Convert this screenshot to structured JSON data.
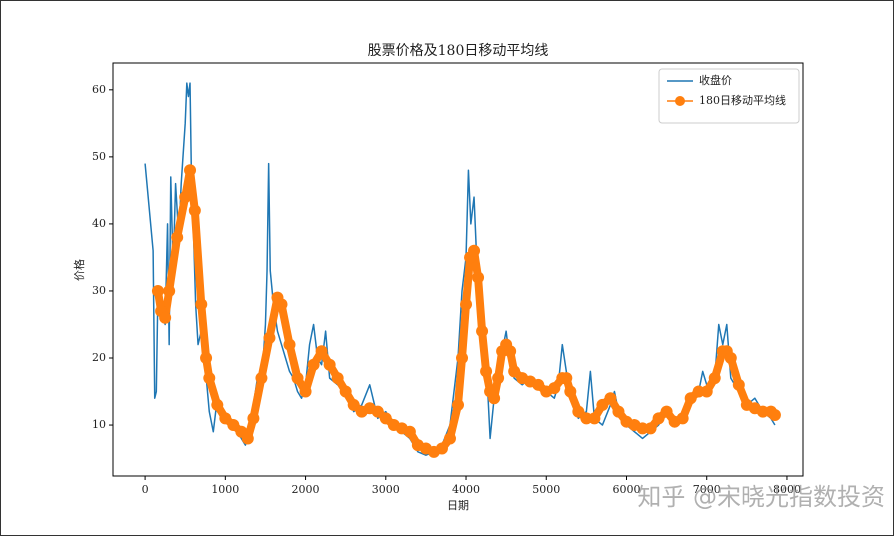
{
  "chart_data": {
    "type": "line",
    "title": "股票价格及180日移动平均线",
    "xlabel": "日期",
    "ylabel": "价格",
    "xlim": [
      -400,
      8200
    ],
    "ylim": [
      2.4,
      64
    ],
    "xticks": [
      0,
      1000,
      2000,
      3000,
      4000,
      5000,
      6000,
      7000,
      8000
    ],
    "yticks": [
      10,
      20,
      30,
      40,
      50,
      60
    ],
    "legend": "upper right",
    "series": [
      {
        "name": "收盘价",
        "color": "#1f77b4",
        "marker": false,
        "x": [
          0,
          100,
          120,
          140,
          160,
          200,
          250,
          280,
          300,
          320,
          350,
          380,
          420,
          450,
          500,
          520,
          540,
          560,
          580,
          600,
          630,
          660,
          700,
          740,
          800,
          850,
          900,
          950,
          1000,
          1100,
          1200,
          1250,
          1300,
          1350,
          1400,
          1450,
          1500,
          1520,
          1540,
          1560,
          1600,
          1650,
          1700,
          1750,
          1800,
          1850,
          1900,
          1950,
          2000,
          2050,
          2100,
          2150,
          2200,
          2250,
          2300,
          2400,
          2500,
          2600,
          2700,
          2800,
          2900,
          3000,
          3100,
          3200,
          3300,
          3350,
          3400,
          3500,
          3600,
          3700,
          3800,
          3900,
          3950,
          4000,
          4030,
          4060,
          4100,
          4150,
          4200,
          4250,
          4300,
          4350,
          4400,
          4450,
          4500,
          4550,
          4600,
          4700,
          4800,
          4900,
          5000,
          5100,
          5150,
          5200,
          5250,
          5300,
          5400,
          5500,
          5550,
          5600,
          5700,
          5800,
          5850,
          5900,
          6000,
          6100,
          6200,
          6300,
          6400,
          6500,
          6600,
          6700,
          6800,
          6900,
          6950,
          7000,
          7100,
          7150,
          7200,
          7250,
          7300,
          7400,
          7500,
          7600,
          7700,
          7800,
          7850
        ],
        "values": [
          49,
          36,
          14,
          15,
          30,
          28,
          25,
          40,
          22,
          47,
          33,
          46,
          38,
          46,
          55,
          61,
          59,
          61,
          45,
          40,
          28,
          22,
          24,
          20,
          12,
          9,
          14,
          12,
          11,
          10,
          8,
          7,
          9,
          13,
          17,
          16,
          25,
          33,
          49,
          33,
          28,
          24,
          22,
          20,
          18,
          17,
          15,
          14,
          16,
          22,
          25,
          20,
          19,
          24,
          17,
          16,
          15,
          12,
          13,
          16,
          11,
          12,
          10,
          9,
          8,
          7,
          6,
          5.5,
          6,
          7,
          10,
          20,
          30,
          35,
          48,
          40,
          44,
          30,
          25,
          20,
          8,
          14,
          16,
          21,
          24,
          19,
          17,
          16,
          17,
          16,
          15,
          14,
          16,
          22,
          18,
          14,
          11,
          12,
          18,
          11,
          10,
          13,
          15,
          12,
          10,
          9,
          8,
          9,
          10,
          12,
          10,
          11,
          14,
          15,
          18,
          16,
          17,
          25,
          22,
          25,
          17,
          15,
          13,
          14,
          12,
          11,
          10
        ]
      },
      {
        "name": "180日移动平均线",
        "color": "#ff7f0e",
        "marker": true,
        "x": [
          160,
          200,
          250,
          300,
          400,
          500,
          560,
          620,
          700,
          760,
          800,
          900,
          1000,
          1100,
          1200,
          1280,
          1350,
          1450,
          1550,
          1650,
          1700,
          1800,
          1900,
          2000,
          2100,
          2200,
          2300,
          2400,
          2500,
          2600,
          2700,
          2800,
          2900,
          3000,
          3100,
          3200,
          3300,
          3400,
          3500,
          3600,
          3700,
          3800,
          3900,
          3950,
          4000,
          4050,
          4100,
          4150,
          4200,
          4250,
          4300,
          4350,
          4400,
          4450,
          4500,
          4550,
          4600,
          4700,
          4800,
          4900,
          5000,
          5100,
          5200,
          5250,
          5300,
          5400,
          5500,
          5600,
          5700,
          5800,
          5900,
          6000,
          6100,
          6200,
          6300,
          6400,
          6500,
          6600,
          6700,
          6800,
          6900,
          7000,
          7100,
          7200,
          7250,
          7300,
          7400,
          7500,
          7600,
          7700,
          7800,
          7850
        ],
        "values": [
          30,
          27,
          26,
          30,
          38,
          44,
          48,
          42,
          28,
          20,
          17,
          13,
          11,
          10,
          9,
          8,
          11,
          17,
          23,
          29,
          28,
          22,
          17,
          15,
          19,
          21,
          19,
          17,
          15,
          13,
          12,
          12.5,
          12,
          11,
          10,
          9.5,
          9,
          7,
          6.5,
          6,
          6.5,
          8,
          13,
          20,
          28,
          35,
          36,
          32,
          24,
          18,
          15,
          14,
          17,
          21,
          22,
          21,
          18,
          17,
          16.5,
          16,
          15,
          15.5,
          17,
          17,
          15,
          12,
          11,
          11,
          13,
          14,
          12,
          10.5,
          10,
          9.5,
          9.5,
          11,
          12,
          10.5,
          11,
          14,
          15,
          15,
          17,
          21,
          21,
          20,
          16,
          13,
          12.5,
          12,
          12,
          11.5
        ]
      }
    ]
  },
  "watermark": "知乎 @宋晓光指数投资"
}
